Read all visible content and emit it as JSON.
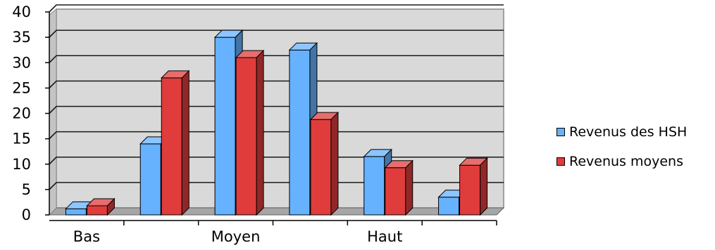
{
  "chart_data": {
    "type": "bar",
    "style": "3d-clustered-column",
    "categories": [
      "Bas",
      "",
      "Moyen",
      "",
      "Haut",
      ""
    ],
    "series": [
      {
        "name": "Revenus des HSH",
        "color": "#66B2FF",
        "values": [
          1.2,
          14,
          35,
          32.5,
          11.5,
          3.5
        ]
      },
      {
        "name": "Revenus moyens",
        "color": "#E03C3C",
        "values": [
          1.8,
          27,
          31,
          18.8,
          9.3,
          9.8
        ]
      }
    ],
    "ylim": [
      0,
      40
    ],
    "yticks": [
      "0",
      "5",
      "10",
      "15",
      "20",
      "25",
      "30",
      "35",
      "40"
    ],
    "grid": true,
    "legend_position": "right"
  }
}
